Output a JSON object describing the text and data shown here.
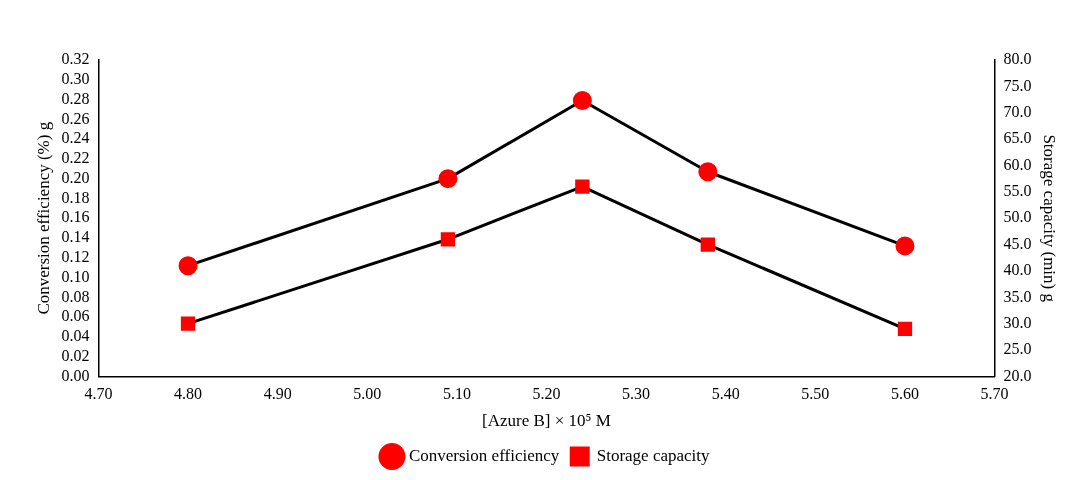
{
  "chart_data": {
    "type": "line",
    "xlabel": "[Azure B] × 10⁵ M",
    "ylabel": "Conversion efficiency (%) g",
    "y2label": "Storage capacity (min) g",
    "x": [
      4.8,
      5.09,
      5.24,
      5.38,
      5.6
    ],
    "series": [
      {
        "name": "Conversion efficiency",
        "color": "#ff0000",
        "marker": "circle",
        "values": [
          0.112,
          0.2,
          0.279,
          0.207,
          0.132
        ]
      },
      {
        "name": "Storage capacity",
        "color": "#ff0000",
        "marker": "square",
        "axis": "y2",
        "values": [
          30,
          46,
          56,
          45,
          29
        ]
      }
    ],
    "xlim": [
      4.7,
      5.7
    ],
    "xticks": [
      {
        "value": 4.7,
        "label": "4.70"
      },
      {
        "value": 4.8,
        "label": "4.80"
      },
      {
        "value": 4.9,
        "label": "4.90"
      },
      {
        "value": 5.0,
        "label": "5.00"
      },
      {
        "value": 5.1,
        "label": "5.10"
      },
      {
        "value": 5.2,
        "label": "5.20"
      },
      {
        "value": 5.3,
        "label": "5.30"
      },
      {
        "value": 5.4,
        "label": "5.40"
      },
      {
        "value": 5.5,
        "label": "5.50"
      },
      {
        "value": 5.6,
        "label": "5.60"
      },
      {
        "value": 5.7,
        "label": "5.70"
      }
    ],
    "ylim": [
      0,
      0.32
    ],
    "yticks": [
      {
        "value": 0,
        "label": "0.00"
      },
      {
        "value": 0.02,
        "label": "0.02"
      },
      {
        "value": 0.04,
        "label": "0.04"
      },
      {
        "value": 0.06,
        "label": "0.06"
      },
      {
        "value": 0.08,
        "label": "0.08"
      },
      {
        "value": 0.1,
        "label": "0.10"
      },
      {
        "value": 0.12,
        "label": "0.12"
      },
      {
        "value": 0.14,
        "label": "0.14"
      },
      {
        "value": 0.16,
        "label": "0.16"
      },
      {
        "value": 0.18,
        "label": "0.18"
      },
      {
        "value": 0.2,
        "label": "0.20"
      },
      {
        "value": 0.22,
        "label": "0.22"
      },
      {
        "value": 0.24,
        "label": "0.24"
      },
      {
        "value": 0.26,
        "label": "0.26"
      },
      {
        "value": 0.28,
        "label": "0.28"
      },
      {
        "value": 0.3,
        "label": "0.30"
      },
      {
        "value": 0.32,
        "label": "0.32"
      }
    ],
    "y2lim": [
      20,
      80
    ],
    "y2ticks": [
      {
        "value": 20,
        "label": "20.0"
      },
      {
        "value": 25,
        "label": "25.0"
      },
      {
        "value": 30,
        "label": "30.0"
      },
      {
        "value": 35,
        "label": "35.0"
      },
      {
        "value": 40,
        "label": "40.0"
      },
      {
        "value": 45,
        "label": "45.0"
      },
      {
        "value": 50,
        "label": "50.0"
      },
      {
        "value": 55,
        "label": "55.0"
      },
      {
        "value": 60,
        "label": "60.0"
      },
      {
        "value": 65,
        "label": "65.0"
      },
      {
        "value": 70,
        "label": "70.0"
      },
      {
        "value": 75,
        "label": "75.0"
      },
      {
        "value": 80,
        "label": "80.0"
      }
    ],
    "grid": false,
    "legend": "bottom",
    "line_style": "solid"
  }
}
